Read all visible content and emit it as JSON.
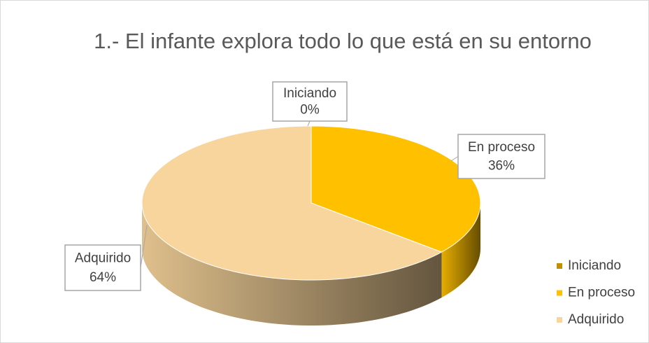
{
  "chart_data": {
    "type": "pie",
    "title": "1.- El infante explora todo lo que está en su entorno",
    "categories": [
      "Iniciando",
      "En proceso",
      "Adquirido"
    ],
    "values": [
      0,
      36,
      64
    ],
    "value_labels": [
      "0%",
      "36%",
      "64%"
    ],
    "colors": [
      "#bf9000",
      "#ffc000",
      "#f8d59c"
    ],
    "legend": "right"
  }
}
